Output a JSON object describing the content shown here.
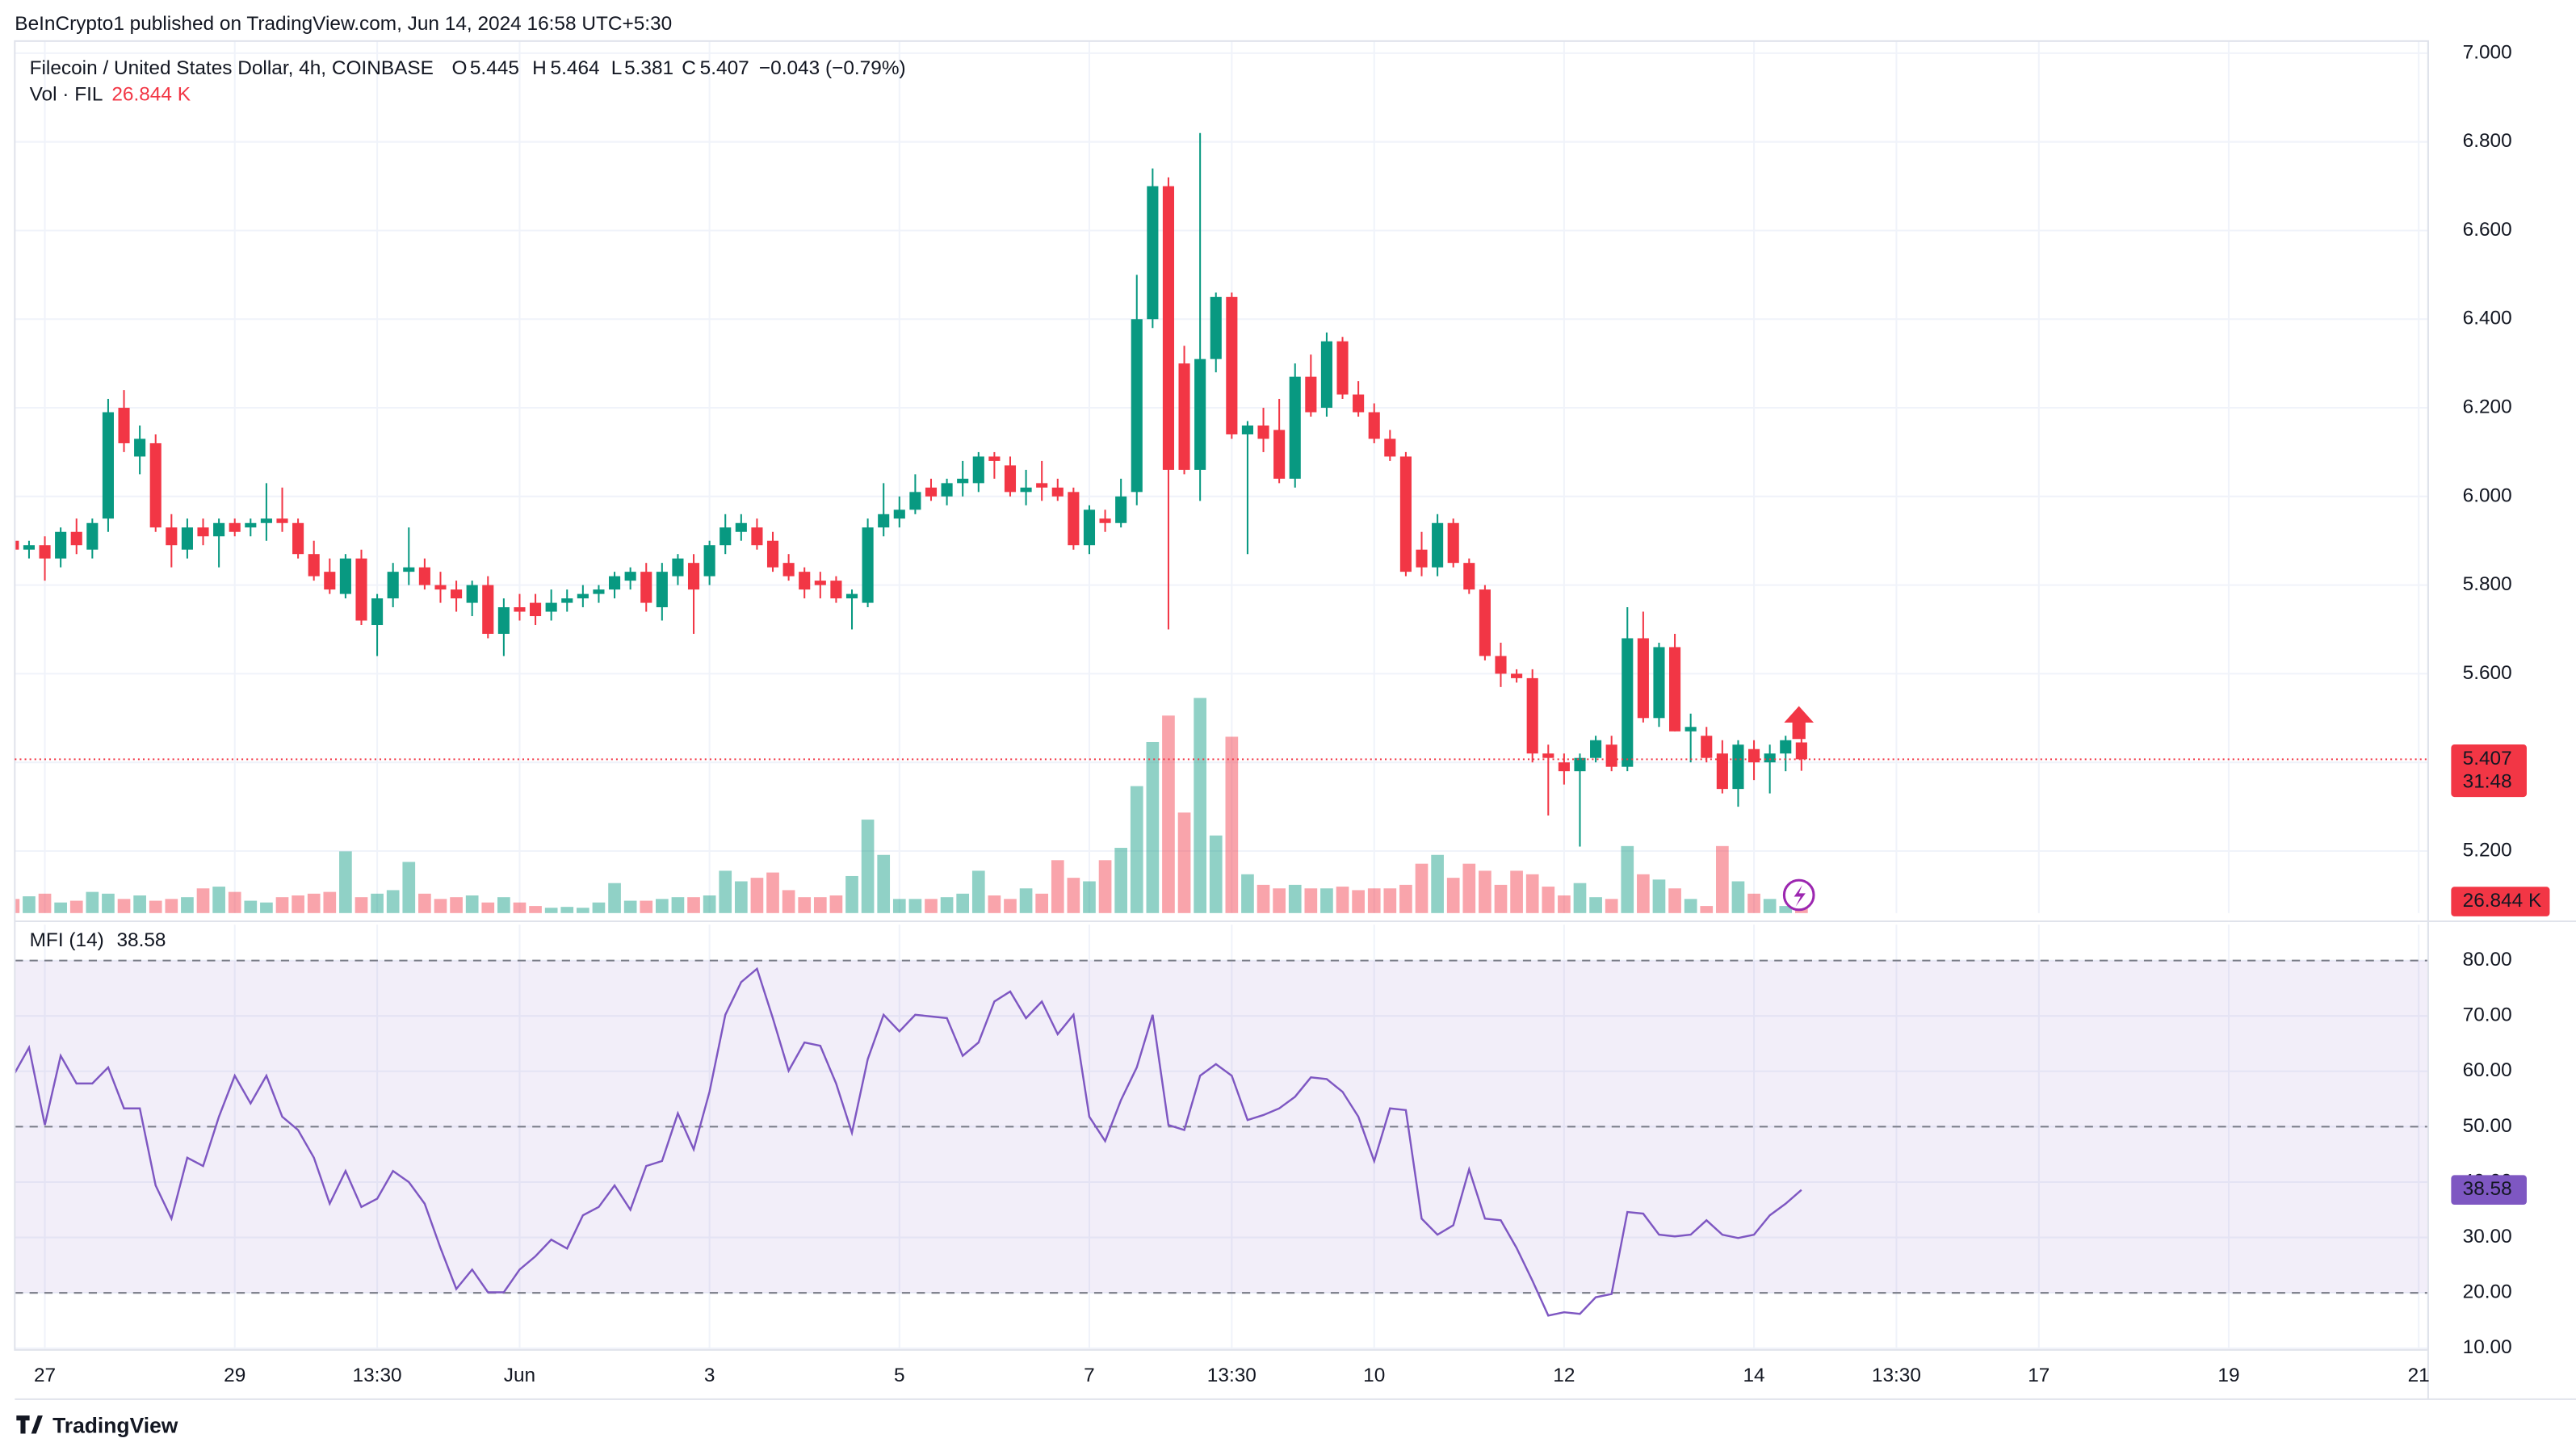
{
  "header": {
    "published": "BeInCrypto1 published on TradingView.com, Jun 14, 2024 16:58 UTC+5:30"
  },
  "footer": {
    "brand": "TradingView"
  },
  "chart_data": {
    "type": "candlestick",
    "symbol": "Filecoin / United States Dollar, 4h, COINBASE",
    "ohlc_letters": [
      "O",
      "H",
      "L",
      "C"
    ],
    "change": "−0.043 (−0.79%)",
    "countdown": "31:48",
    "up_color": "#089981",
    "down_color": "#f23645",
    "grid": true,
    "xlim": [
      0.1,
      152.6
    ],
    "xticks": [
      {
        "value": 2,
        "label": "27"
      },
      {
        "value": 14,
        "label": "29"
      },
      {
        "value": 23,
        "label": "13:30"
      },
      {
        "value": 32,
        "label": "Jun"
      },
      {
        "value": 44,
        "label": "3"
      },
      {
        "value": 56,
        "label": "5"
      },
      {
        "value": 68,
        "label": "7"
      },
      {
        "value": 77,
        "label": "13:30"
      },
      {
        "value": 86,
        "label": "10"
      },
      {
        "value": 98,
        "label": "12"
      },
      {
        "value": 110,
        "label": "14"
      },
      {
        "value": 119,
        "label": "13:30"
      },
      {
        "value": 128,
        "label": "17"
      },
      {
        "value": 140,
        "label": "19"
      },
      {
        "value": 152,
        "label": "21"
      }
    ],
    "ylim": [
      5.06,
      7.02
    ],
    "yticks": [
      {
        "value": 5.2,
        "label": "5.200"
      },
      {
        "value": 5.4,
        "label": "5.400"
      },
      {
        "value": 5.6,
        "label": "5.600"
      },
      {
        "value": 5.8,
        "label": "5.800"
      },
      {
        "value": 6,
        "label": "6.000"
      },
      {
        "value": 6.2,
        "label": "6.200"
      },
      {
        "value": 6.4,
        "label": "6.400"
      },
      {
        "value": 6.6,
        "label": "6.600"
      },
      {
        "value": 6.8,
        "label": "6.800"
      },
      {
        "value": 7,
        "label": "7.000"
      }
    ],
    "open": [
      5.9,
      5.88,
      5.89,
      5.86,
      5.92,
      5.88,
      5.95,
      6.2,
      6.09,
      6.12,
      5.93,
      5.88,
      5.93,
      5.91,
      5.94,
      5.93,
      5.94,
      5.95,
      5.94,
      5.87,
      5.83,
      5.78,
      5.86,
      5.71,
      5.77,
      5.83,
      5.84,
      5.8,
      5.79,
      5.76,
      5.8,
      5.69,
      5.75,
      5.76,
      5.74,
      5.76,
      5.77,
      5.78,
      5.79,
      5.81,
      5.83,
      5.75,
      5.82,
      5.85,
      5.82,
      5.89,
      5.92,
      5.93,
      5.9,
      5.85,
      5.83,
      5.81,
      5.81,
      5.77,
      5.76,
      5.93,
      5.95,
      5.97,
      6.02,
      6.0,
      6.03,
      6.03,
      6.09,
      6.07,
      6.01,
      6.03,
      6.02,
      6.01,
      5.89,
      5.95,
      5.94,
      6.01,
      6.4,
      6.7,
      6.3,
      6.06,
      6.31,
      6.45,
      6.14,
      6.16,
      6.15,
      6.04,
      6.27,
      6.2,
      6.35,
      6.23,
      6.19,
      6.13,
      6.09,
      5.88,
      5.84,
      5.94,
      5.85,
      5.79,
      5.64,
      5.6,
      5.59,
      5.42,
      5.4,
      5.38,
      5.41,
      5.44,
      5.39,
      5.68,
      5.5,
      5.66,
      5.47,
      5.46,
      5.42,
      5.34,
      5.43,
      5.4,
      5.42,
      5.445
    ],
    "high": [
      5.91,
      5.9,
      5.91,
      5.93,
      5.95,
      5.95,
      6.22,
      6.24,
      6.16,
      6.14,
      5.96,
      5.95,
      5.95,
      5.95,
      5.95,
      5.95,
      6.03,
      6.02,
      5.95,
      5.9,
      5.86,
      5.87,
      5.88,
      5.78,
      5.85,
      5.93,
      5.86,
      5.83,
      5.81,
      5.81,
      5.82,
      5.77,
      5.78,
      5.78,
      5.79,
      5.79,
      5.8,
      5.8,
      5.83,
      5.84,
      5.85,
      5.85,
      5.87,
      5.87,
      5.9,
      5.96,
      5.96,
      5.95,
      5.92,
      5.87,
      5.84,
      5.83,
      5.82,
      5.79,
      5.95,
      6.03,
      6.0,
      6.05,
      6.04,
      6.04,
      6.08,
      6.1,
      6.1,
      6.09,
      6.06,
      6.08,
      6.04,
      6.02,
      5.98,
      5.97,
      6.04,
      6.5,
      6.74,
      6.72,
      6.34,
      6.82,
      6.46,
      6.46,
      6.17,
      6.2,
      6.22,
      6.3,
      6.32,
      6.37,
      6.36,
      6.26,
      6.21,
      6.15,
      6.1,
      5.92,
      5.96,
      5.95,
      5.86,
      5.8,
      5.67,
      5.61,
      5.61,
      5.44,
      5.42,
      5.42,
      5.46,
      5.46,
      5.75,
      5.74,
      5.67,
      5.69,
      5.51,
      5.48,
      5.45,
      5.45,
      5.45,
      5.44,
      5.46,
      5.464
    ],
    "low": [
      5.87,
      5.86,
      5.81,
      5.84,
      5.87,
      5.86,
      5.92,
      6.1,
      6.05,
      5.92,
      5.84,
      5.86,
      5.89,
      5.84,
      5.91,
      5.91,
      5.9,
      5.92,
      5.86,
      5.81,
      5.78,
      5.77,
      5.71,
      5.64,
      5.75,
      5.8,
      5.79,
      5.76,
      5.74,
      5.73,
      5.68,
      5.64,
      5.72,
      5.71,
      5.72,
      5.74,
      5.75,
      5.76,
      5.77,
      5.79,
      5.74,
      5.72,
      5.8,
      5.69,
      5.8,
      5.87,
      5.9,
      5.88,
      5.83,
      5.81,
      5.77,
      5.77,
      5.76,
      5.7,
      5.75,
      5.91,
      5.93,
      5.96,
      5.99,
      5.98,
      6.0,
      6.01,
      6.04,
      6.0,
      5.98,
      5.99,
      5.99,
      5.88,
      5.87,
      5.92,
      5.93,
      5.98,
      6.38,
      5.7,
      6.05,
      5.99,
      6.28,
      6.13,
      5.87,
      6.1,
      6.03,
      6.02,
      6.18,
      6.18,
      6.22,
      6.18,
      6.12,
      6.08,
      5.82,
      5.82,
      5.82,
      5.84,
      5.78,
      5.63,
      5.57,
      5.58,
      5.4,
      5.28,
      5.35,
      5.21,
      5.4,
      5.38,
      5.38,
      5.49,
      5.48,
      5.47,
      5.4,
      5.4,
      5.33,
      5.3,
      5.36,
      5.33,
      5.38,
      5.381
    ],
    "close": [
      5.88,
      5.89,
      5.86,
      5.92,
      5.89,
      5.94,
      6.19,
      6.12,
      6.13,
      5.93,
      5.89,
      5.93,
      5.91,
      5.94,
      5.92,
      5.94,
      5.95,
      5.94,
      5.87,
      5.82,
      5.79,
      5.86,
      5.72,
      5.77,
      5.83,
      5.84,
      5.8,
      5.79,
      5.77,
      5.8,
      5.69,
      5.75,
      5.74,
      5.73,
      5.76,
      5.77,
      5.78,
      5.79,
      5.82,
      5.83,
      5.76,
      5.83,
      5.86,
      5.79,
      5.89,
      5.93,
      5.94,
      5.89,
      5.84,
      5.82,
      5.79,
      5.8,
      5.77,
      5.78,
      5.93,
      5.96,
      5.97,
      6.01,
      6.0,
      6.03,
      6.04,
      6.09,
      6.08,
      6.01,
      6.02,
      6.02,
      6.0,
      5.89,
      5.97,
      5.94,
      6.0,
      6.4,
      6.7,
      6.06,
      6.06,
      6.31,
      6.45,
      6.14,
      6.16,
      6.13,
      6.04,
      6.27,
      6.19,
      6.35,
      6.23,
      6.19,
      6.13,
      6.09,
      5.83,
      5.84,
      5.94,
      5.85,
      5.79,
      5.64,
      5.6,
      5.59,
      5.42,
      5.41,
      5.38,
      5.41,
      5.45,
      5.39,
      5.68,
      5.5,
      5.66,
      5.47,
      5.48,
      5.41,
      5.34,
      5.44,
      5.4,
      5.42,
      5.45,
      5.407
    ],
    "volume": {
      "name": "Vol · FIL",
      "last_label": "26.844 K",
      "values": [
        80,
        95,
        110,
        60,
        70,
        120,
        110,
        80,
        100,
        70,
        80,
        90,
        140,
        150,
        120,
        70,
        60,
        90,
        100,
        110,
        120,
        350,
        90,
        110,
        130,
        290,
        110,
        80,
        90,
        100,
        60,
        90,
        60,
        40,
        30,
        35,
        30,
        60,
        170,
        70,
        70,
        80,
        90,
        90,
        100,
        240,
        180,
        200,
        230,
        130,
        90,
        90,
        100,
        210,
        530,
        330,
        80,
        80,
        80,
        90,
        110,
        240,
        100,
        80,
        140,
        110,
        300,
        200,
        180,
        300,
        370,
        720,
        970,
        1120,
        570,
        1220,
        440,
        1000,
        220,
        160,
        140,
        160,
        140,
        140,
        150,
        130,
        140,
        140,
        160,
        280,
        330,
        200,
        280,
        240,
        160,
        240,
        220,
        150,
        100,
        170,
        90,
        80,
        380,
        220,
        190,
        140,
        80,
        40,
        380,
        180,
        110,
        80,
        40,
        26.844
      ]
    },
    "mfi": {
      "name": "MFI (14)",
      "color": "#7e57c2",
      "ylim": [
        9.7,
        85.6
      ],
      "yticks": [
        {
          "value": 10,
          "label": "10.00"
        },
        {
          "value": 20,
          "label": "20.00"
        },
        {
          "value": 30,
          "label": "30.00"
        },
        {
          "value": 40,
          "label": "40.00"
        },
        {
          "value": 50,
          "label": "50.00"
        },
        {
          "value": 60,
          "label": "60.00"
        },
        {
          "value": 70,
          "label": "70.00"
        },
        {
          "value": 80,
          "label": "80.00"
        }
      ],
      "band": [
        20,
        80
      ],
      "levels": [
        20,
        50,
        80
      ],
      "values": [
        59.2,
        64.3,
        50.3,
        62.8,
        57.8,
        57.8,
        60.7,
        53.3,
        53.3,
        39.4,
        33.4,
        44.4,
        42.9,
        51.8,
        59.2,
        54.2,
        59.2,
        51.8,
        49.4,
        44.4,
        36.1,
        42.0,
        35.5,
        37.0,
        42.0,
        40.0,
        36.1,
        28.1,
        20.7,
        24.2,
        20.1,
        20.1,
        24.2,
        26.6,
        29.6,
        28.0,
        34.0,
        35.5,
        39.4,
        35.0,
        42.9,
        43.8,
        52.4,
        45.9,
        56.3,
        70.2,
        76.1,
        78.5,
        69.6,
        60.1,
        65.2,
        64.6,
        57.8,
        48.9,
        62.2,
        70.2,
        67.2,
        70.2,
        69.9,
        69.6,
        62.8,
        65.2,
        72.6,
        74.4,
        69.6,
        72.6,
        66.7,
        70.2,
        51.8,
        47.4,
        54.8,
        60.7,
        70.2,
        50.3,
        49.4,
        59.2,
        61.3,
        59.2,
        51.2,
        52.1,
        53.3,
        55.4,
        58.9,
        58.6,
        56.3,
        51.8,
        43.8,
        53.3,
        53.0,
        33.4,
        30.5,
        32.2,
        42.3,
        33.4,
        33.1,
        28.1,
        22.2,
        15.9,
        16.5,
        16.2,
        19.2,
        19.8,
        34.6,
        34.3,
        30.5,
        30.2,
        30.5,
        33.1,
        30.5,
        29.9,
        30.5,
        34.0,
        36.1,
        38.58
      ]
    }
  }
}
